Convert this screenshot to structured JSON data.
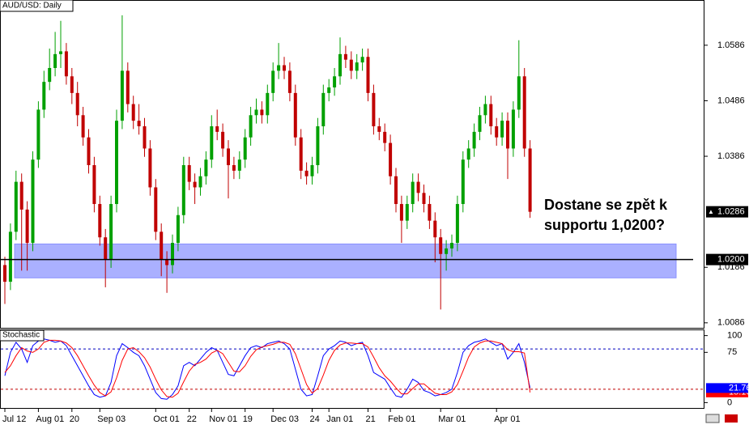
{
  "chart_data": [
    {
      "type": "candlestick",
      "title": "AUD/USD:  Daily",
      "categories": [
        "Jul 12",
        null,
        null,
        null,
        null,
        null,
        "Aug 01",
        null,
        null,
        null,
        null,
        null,
        "20",
        null,
        null,
        null,
        null,
        "Sep 03",
        null,
        null,
        null,
        null,
        null,
        null,
        null,
        null,
        null,
        "Oct 01",
        null,
        null,
        null,
        null,
        null,
        "22",
        null,
        null,
        null,
        "Nov 01",
        null,
        null,
        null,
        null,
        null,
        "19",
        null,
        null,
        null,
        null,
        "Dec 03",
        null,
        null,
        null,
        null,
        null,
        null,
        "24",
        null,
        null,
        "Jan 01",
        null,
        null,
        null,
        null,
        null,
        null,
        "21",
        null,
        null,
        null,
        "Feb 01",
        null,
        null,
        null,
        null,
        null,
        null,
        null,
        null,
        "Mar 01",
        null,
        null,
        null,
        null,
        null,
        null,
        null,
        null,
        null,
        "Apr 01",
        null,
        null,
        null,
        null,
        null,
        null
      ],
      "ohlc": [
        [
          1.019,
          1.0205,
          1.012,
          1.016
        ],
        [
          1.016,
          1.0265,
          1.0145,
          1.025
        ],
        [
          1.025,
          1.036,
          1.0235,
          1.034
        ],
        [
          1.034,
          1.0355,
          1.018,
          1.029
        ],
        [
          1.029,
          1.0305,
          1.018,
          1.023
        ],
        [
          1.023,
          1.0395,
          1.0215,
          1.038
        ],
        [
          1.038,
          1.0485,
          1.0365,
          1.047
        ],
        [
          1.047,
          1.054,
          1.0455,
          1.052
        ],
        [
          1.052,
          1.058,
          1.0505,
          1.0545
        ],
        [
          1.0545,
          1.061,
          1.053,
          1.057
        ],
        [
          1.057,
          1.063,
          1.0545,
          1.0575
        ],
        [
          1.0575,
          1.059,
          1.0515,
          1.053
        ],
        [
          1.053,
          1.0545,
          1.048,
          1.05
        ],
        [
          1.05,
          1.052,
          1.044,
          1.046
        ],
        [
          1.046,
          1.0475,
          1.0405,
          1.042
        ],
        [
          1.042,
          1.0435,
          1.0355,
          1.037
        ],
        [
          1.037,
          1.0385,
          1.0285,
          1.03
        ],
        [
          1.03,
          1.0315,
          1.0225,
          1.024
        ],
        [
          1.024,
          1.0255,
          1.015,
          1.02
        ],
        [
          1.02,
          1.0315,
          1.0185,
          1.03
        ],
        [
          1.03,
          1.047,
          1.0285,
          1.045
        ],
        [
          1.045,
          1.064,
          1.0435,
          1.054
        ],
        [
          1.054,
          1.0555,
          1.0465,
          1.048
        ],
        [
          1.048,
          1.0495,
          1.0435,
          1.045
        ],
        [
          1.045,
          1.048,
          1.0425,
          1.044
        ],
        [
          1.044,
          1.0455,
          1.0385,
          1.04
        ],
        [
          1.04,
          1.0415,
          1.0315,
          1.033
        ],
        [
          1.033,
          1.0345,
          1.0235,
          1.025
        ],
        [
          1.025,
          1.0265,
          1.017,
          1.02
        ],
        [
          1.02,
          1.0215,
          1.014,
          1.019
        ],
        [
          1.019,
          1.0245,
          1.0175,
          1.023
        ],
        [
          1.023,
          1.0295,
          1.0215,
          1.028
        ],
        [
          1.028,
          1.0385,
          1.0265,
          1.037
        ],
        [
          1.037,
          1.0385,
          1.0325,
          1.034
        ],
        [
          1.034,
          1.0355,
          1.03,
          1.033
        ],
        [
          1.033,
          1.0365,
          1.0315,
          1.035
        ],
        [
          1.035,
          1.0395,
          1.0335,
          1.038
        ],
        [
          1.038,
          1.046,
          1.0365,
          1.044
        ],
        [
          1.044,
          1.047,
          1.0415,
          1.043
        ],
        [
          1.043,
          1.0445,
          1.0385,
          1.04
        ],
        [
          1.04,
          1.0415,
          1.031,
          1.037
        ],
        [
          1.037,
          1.0385,
          1.0345,
          1.036
        ],
        [
          1.036,
          1.0395,
          1.0345,
          1.038
        ],
        [
          1.038,
          1.0435,
          1.0365,
          1.042
        ],
        [
          1.042,
          1.0475,
          1.0405,
          1.046
        ],
        [
          1.046,
          1.049,
          1.0445,
          1.047
        ],
        [
          1.047,
          1.0485,
          1.0445,
          1.046
        ],
        [
          1.046,
          1.0515,
          1.0445,
          1.05
        ],
        [
          1.05,
          1.0555,
          1.0485,
          1.054
        ],
        [
          1.054,
          1.059,
          1.0525,
          1.055
        ],
        [
          1.055,
          1.0565,
          1.0525,
          1.054
        ],
        [
          1.054,
          1.0555,
          1.0485,
          1.05
        ],
        [
          1.05,
          1.0515,
          1.0405,
          1.042
        ],
        [
          1.042,
          1.0435,
          1.0345,
          1.036
        ],
        [
          1.036,
          1.0375,
          1.0335,
          1.035
        ],
        [
          1.035,
          1.0385,
          1.0335,
          1.037
        ],
        [
          1.037,
          1.0455,
          1.0355,
          1.044
        ],
        [
          1.044,
          1.0515,
          1.0425,
          1.05
        ],
        [
          1.05,
          1.0525,
          1.0485,
          1.051
        ],
        [
          1.051,
          1.0545,
          1.0495,
          1.053
        ],
        [
          1.053,
          1.06,
          1.0515,
          1.057
        ],
        [
          1.057,
          1.0585,
          1.0545,
          1.056
        ],
        [
          1.056,
          1.0575,
          1.0525,
          1.054
        ],
        [
          1.054,
          1.057,
          1.0525,
          1.0555
        ],
        [
          1.0555,
          1.058,
          1.054,
          1.0565
        ],
        [
          1.0565,
          1.058,
          1.0485,
          1.05
        ],
        [
          1.05,
          1.0515,
          1.0425,
          1.044
        ],
        [
          1.044,
          1.0455,
          1.0415,
          1.043
        ],
        [
          1.043,
          1.0445,
          1.0395,
          1.041
        ],
        [
          1.041,
          1.0425,
          1.0335,
          1.035
        ],
        [
          1.035,
          1.0365,
          1.0285,
          1.03
        ],
        [
          1.03,
          1.0315,
          1.023,
          1.027
        ],
        [
          1.027,
          1.0315,
          1.0255,
          1.03
        ],
        [
          1.03,
          1.0355,
          1.0285,
          1.034
        ],
        [
          1.034,
          1.0355,
          1.0305,
          1.032
        ],
        [
          1.032,
          1.0335,
          1.0285,
          1.03
        ],
        [
          1.03,
          1.0315,
          1.0255,
          1.027
        ],
        [
          1.027,
          1.0285,
          1.0195,
          1.024
        ],
        [
          1.024,
          1.0255,
          1.011,
          1.021
        ],
        [
          1.021,
          1.0235,
          1.018,
          1.022
        ],
        [
          1.022,
          1.0245,
          1.0205,
          1.023
        ],
        [
          1.023,
          1.0315,
          1.0215,
          1.03
        ],
        [
          1.03,
          1.0395,
          1.0285,
          1.038
        ],
        [
          1.038,
          1.0415,
          1.0365,
          1.04
        ],
        [
          1.04,
          1.0445,
          1.0385,
          1.043
        ],
        [
          1.043,
          1.0475,
          1.0415,
          1.046
        ],
        [
          1.046,
          1.0495,
          1.0445,
          1.048
        ],
        [
          1.048,
          1.0495,
          1.0425,
          1.044
        ],
        [
          1.044,
          1.0455,
          1.0405,
          1.042
        ],
        [
          1.042,
          1.0465,
          1.0405,
          1.045
        ],
        [
          1.045,
          1.0465,
          1.0345,
          1.04
        ],
        [
          1.04,
          1.0485,
          1.0385,
          1.047
        ],
        [
          1.047,
          1.0595,
          1.0455,
          1.053
        ],
        [
          1.053,
          1.0545,
          1.0385,
          1.04
        ],
        [
          1.04,
          1.0415,
          1.0275,
          1.0286
        ]
      ],
      "up_color": "#00a000",
      "down_color": "#c00000",
      "ylim": [
        1.0077,
        1.0666
      ],
      "yticks": [
        1.0086,
        1.0186,
        1.0386,
        1.0486,
        1.0586
      ],
      "support": {
        "value": 1.02,
        "label": "1.0200"
      },
      "zone": [
        1.0167,
        1.0228
      ],
      "zone_color": "#aab0ff",
      "annotation": [
        "Dostane se zpět k",
        "supportu 1,0200?"
      ]
    },
    {
      "type": "stochastic",
      "title": "Stochastic",
      "series": [
        {
          "color": "#0000ff",
          "values": [
            40,
            75,
            90,
            80,
            60,
            85,
            92,
            95,
            93,
            90,
            92,
            85,
            70,
            55,
            40,
            25,
            12,
            8,
            10,
            30,
            70,
            88,
            82,
            75,
            70,
            55,
            35,
            15,
            6,
            5,
            12,
            25,
            55,
            60,
            55,
            65,
            75,
            82,
            78,
            60,
            42,
            40,
            55,
            70,
            82,
            85,
            82,
            88,
            90,
            92,
            88,
            80,
            50,
            20,
            10,
            12,
            40,
            70,
            80,
            85,
            92,
            90,
            85,
            88,
            90,
            70,
            45,
            40,
            35,
            22,
            10,
            8,
            20,
            35,
            30,
            18,
            15,
            10,
            12,
            15,
            20,
            45,
            75,
            85,
            90,
            92,
            95,
            90,
            85,
            88,
            65,
            75,
            88,
            60,
            21.76
          ]
        },
        {
          "color": "#ff0000",
          "values": [
            45,
            55,
            70,
            82,
            77,
            75,
            80,
            90,
            93,
            93,
            92,
            89,
            82,
            70,
            55,
            40,
            26,
            15,
            10,
            16,
            37,
            63,
            80,
            82,
            76,
            67,
            53,
            35,
            19,
            9,
            8,
            14,
            31,
            47,
            57,
            60,
            65,
            74,
            78,
            73,
            60,
            47,
            46,
            55,
            69,
            79,
            83,
            85,
            87,
            90,
            90,
            87,
            73,
            50,
            27,
            14,
            21,
            41,
            63,
            78,
            86,
            89,
            89,
            88,
            88,
            83,
            68,
            52,
            40,
            32,
            22,
            13,
            13,
            21,
            28,
            28,
            21,
            14,
            12,
            12,
            16,
            27,
            47,
            68,
            83,
            89,
            92,
            92,
            90,
            88,
            79,
            76,
            76,
            74,
            15.16
          ]
        }
      ],
      "ylim": [
        -8,
        108
      ],
      "yticks": [
        0,
        75,
        100
      ],
      "levels": [
        {
          "value": 20,
          "color": "#c00000"
        },
        {
          "value": 80,
          "color": "#0000c0"
        }
      ]
    }
  ]
}
